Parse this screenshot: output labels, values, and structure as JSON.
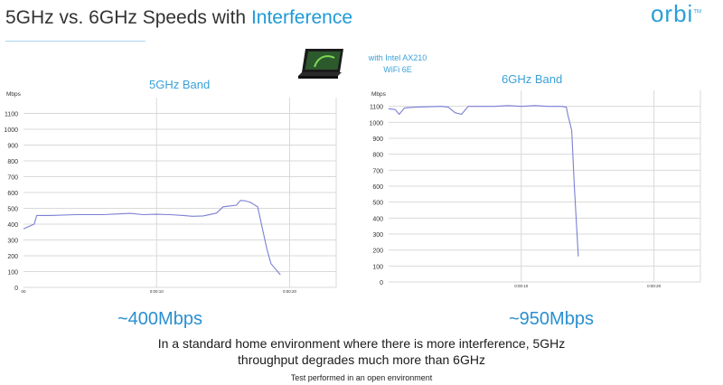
{
  "page": {
    "title_part1": "5GHz vs. 6GHz Speeds with ",
    "title_part2": "Interference",
    "logo_text": "orbi",
    "logo_tm": "TM",
    "laptop_note_line1": "with Intel AX210",
    "laptop_note_line2": "WiFi 6E",
    "result_5ghz": "~400Mbps",
    "result_6ghz": "~950Mbps",
    "caption_line1": "In a standard home environment where there is more interference, 5GHz",
    "caption_line2": "throughput degrades much more than 6GHz",
    "footnote": "Test performed in an open environment",
    "colors": {
      "accent": "#1e9ad6",
      "line": "#7b7fd4",
      "grid": "#d9d9d9"
    }
  },
  "chart_data": [
    {
      "type": "line",
      "title": "5GHz Band",
      "ylabel": "Mbps",
      "xlabel": "",
      "ylim": [
        0,
        1200
      ],
      "yticks": [
        0,
        100,
        200,
        300,
        400,
        500,
        600,
        700,
        800,
        900,
        1000,
        1100
      ],
      "xlim": [
        0,
        23.5
      ],
      "xtick_labels": [
        {
          "x": 0,
          "label": "00"
        },
        {
          "x": 10,
          "label": "0:00:10"
        },
        {
          "x": 20,
          "label": "0:00:20"
        }
      ],
      "series": [
        {
          "name": "5GHz throughput",
          "x": [
            0,
            0.8,
            1.0,
            2,
            4,
            6,
            8,
            9,
            10,
            11,
            12,
            12.7,
            13.5,
            14.5,
            15,
            15.5,
            16,
            16.3,
            16.6,
            17.0,
            17.6,
            18.3,
            18.6,
            19.3
          ],
          "y": [
            370,
            400,
            455,
            455,
            460,
            460,
            468,
            460,
            462,
            460,
            455,
            450,
            452,
            470,
            510,
            515,
            520,
            550,
            548,
            540,
            510,
            240,
            150,
            80
          ]
        }
      ]
    },
    {
      "type": "line",
      "title": "6GHz Band",
      "ylabel": "Mbps",
      "xlabel": "",
      "ylim": [
        0,
        1200
      ],
      "yticks": [
        0,
        100,
        200,
        300,
        400,
        500,
        600,
        700,
        800,
        900,
        1000,
        1100
      ],
      "xlim": [
        0,
        23.5
      ],
      "xtick_labels": [
        {
          "x": 10,
          "label": "0:00:10"
        },
        {
          "x": 20,
          "label": "0:00:20"
        }
      ],
      "series": [
        {
          "name": "6GHz throughput",
          "x": [
            0,
            0.5,
            0.8,
            1.2,
            2,
            4,
            4.5,
            5.0,
            5.5,
            6,
            8,
            9,
            10,
            11,
            12,
            13,
            13.4,
            13.5,
            13.8,
            14.0,
            14.3
          ],
          "y": [
            1085,
            1080,
            1050,
            1090,
            1095,
            1100,
            1095,
            1060,
            1050,
            1100,
            1100,
            1105,
            1100,
            1105,
            1100,
            1100,
            1095,
            1050,
            950,
            600,
            160
          ]
        }
      ]
    }
  ]
}
